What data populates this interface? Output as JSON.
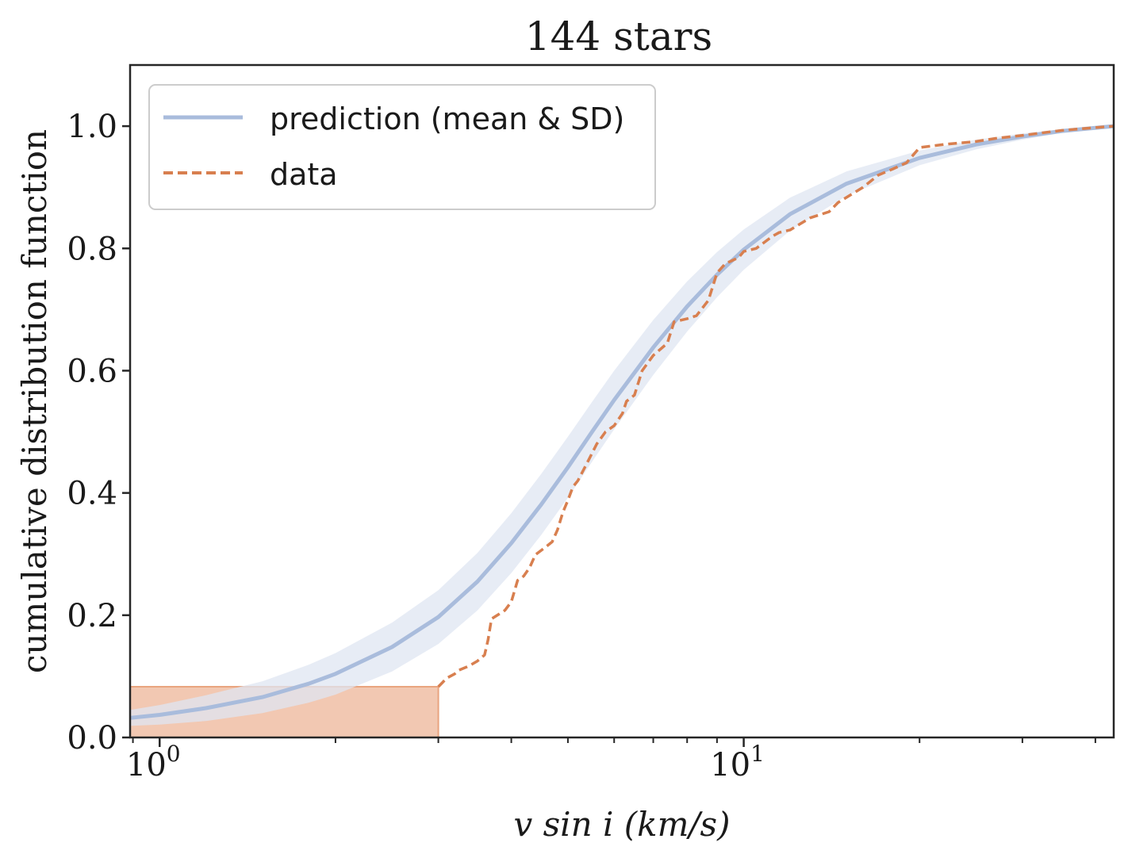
{
  "chart_data": {
    "type": "line",
    "title": "144 stars",
    "xlabel": "v sin i (km/s)",
    "ylabel": "cumulative distribution function",
    "xscale": "log",
    "xlim": [
      0.89,
      43
    ],
    "ylim": [
      0.0,
      1.1
    ],
    "grid": false,
    "legend_position": "top-left",
    "x_ticks": [
      {
        "value": 1,
        "base": "10",
        "exp": "0"
      },
      {
        "value": 10,
        "base": "10",
        "exp": "1"
      }
    ],
    "y_ticks": [
      {
        "value": 0.0,
        "label": "0.0"
      },
      {
        "value": 0.2,
        "label": "0.2"
      },
      {
        "value": 0.4,
        "label": "0.4"
      },
      {
        "value": 0.6,
        "label": "0.6"
      },
      {
        "value": 0.8,
        "label": "0.8"
      },
      {
        "value": 1.0,
        "label": "1.0"
      }
    ],
    "series": [
      {
        "name": "prediction (mean & SD)",
        "color": "#a9bcdc",
        "band_color": "#dfe5f2",
        "x": [
          0.89,
          1.0,
          1.2,
          1.5,
          1.8,
          2.0,
          2.5,
          3.0,
          3.5,
          4.0,
          4.5,
          5.0,
          5.5,
          6.0,
          7.0,
          8.0,
          9.0,
          10.0,
          12.0,
          15.0,
          20.0,
          25.0,
          30.0,
          35.0,
          43.0
        ],
        "mean": [
          0.032,
          0.037,
          0.048,
          0.066,
          0.088,
          0.104,
          0.148,
          0.197,
          0.255,
          0.318,
          0.381,
          0.442,
          0.5,
          0.552,
          0.638,
          0.705,
          0.757,
          0.798,
          0.856,
          0.906,
          0.948,
          0.97,
          0.983,
          0.992,
          1.0
        ],
        "sd": [
          0.013,
          0.016,
          0.021,
          0.026,
          0.031,
          0.034,
          0.04,
          0.044,
          0.047,
          0.049,
          0.05,
          0.05,
          0.049,
          0.048,
          0.045,
          0.041,
          0.037,
          0.033,
          0.027,
          0.02,
          0.012,
          0.008,
          0.005,
          0.003,
          0.0
        ]
      },
      {
        "name": "data",
        "color": "#d87f4f",
        "style": "dashed",
        "x": [
          3.0,
          3.05,
          3.1,
          3.2,
          3.25,
          3.35,
          3.4,
          3.5,
          3.6,
          3.65,
          3.7,
          3.8,
          3.9,
          4.0,
          4.1,
          4.2,
          4.3,
          4.4,
          4.5,
          4.6,
          4.7,
          4.8,
          4.9,
          5.0,
          5.1,
          5.2,
          5.4,
          5.5,
          5.6,
          5.8,
          6.0,
          6.2,
          6.3,
          6.5,
          6.7,
          7.0,
          7.4,
          7.6,
          8.0,
          8.3,
          8.7,
          9.0,
          9.3,
          9.8,
          10.0,
          10.5,
          11.2,
          11.5,
          12.0,
          13.0,
          14.0,
          14.5,
          16.0,
          17.0,
          18.0,
          19.0,
          20.0,
          22.0,
          25.0,
          27.0,
          30.0,
          33.0,
          35.0,
          38.0,
          43.0
        ],
        "y": [
          0.083,
          0.09,
          0.097,
          0.104,
          0.11,
          0.115,
          0.118,
          0.125,
          0.135,
          0.16,
          0.194,
          0.201,
          0.208,
          0.222,
          0.257,
          0.264,
          0.278,
          0.299,
          0.306,
          0.313,
          0.32,
          0.34,
          0.368,
          0.388,
          0.41,
          0.42,
          0.45,
          0.465,
          0.48,
          0.5,
          0.51,
          0.53,
          0.55,
          0.56,
          0.6,
          0.625,
          0.645,
          0.68,
          0.685,
          0.69,
          0.715,
          0.76,
          0.775,
          0.785,
          0.795,
          0.8,
          0.82,
          0.826,
          0.83,
          0.85,
          0.86,
          0.875,
          0.9,
          0.92,
          0.93,
          0.94,
          0.965,
          0.97,
          0.975,
          0.98,
          0.985,
          0.99,
          0.993,
          0.996,
          1.0
        ]
      }
    ],
    "shaded_region": {
      "x": [
        0.89,
        3.0
      ],
      "y": [
        0.0,
        0.083
      ],
      "color": "#e9a47f"
    }
  }
}
